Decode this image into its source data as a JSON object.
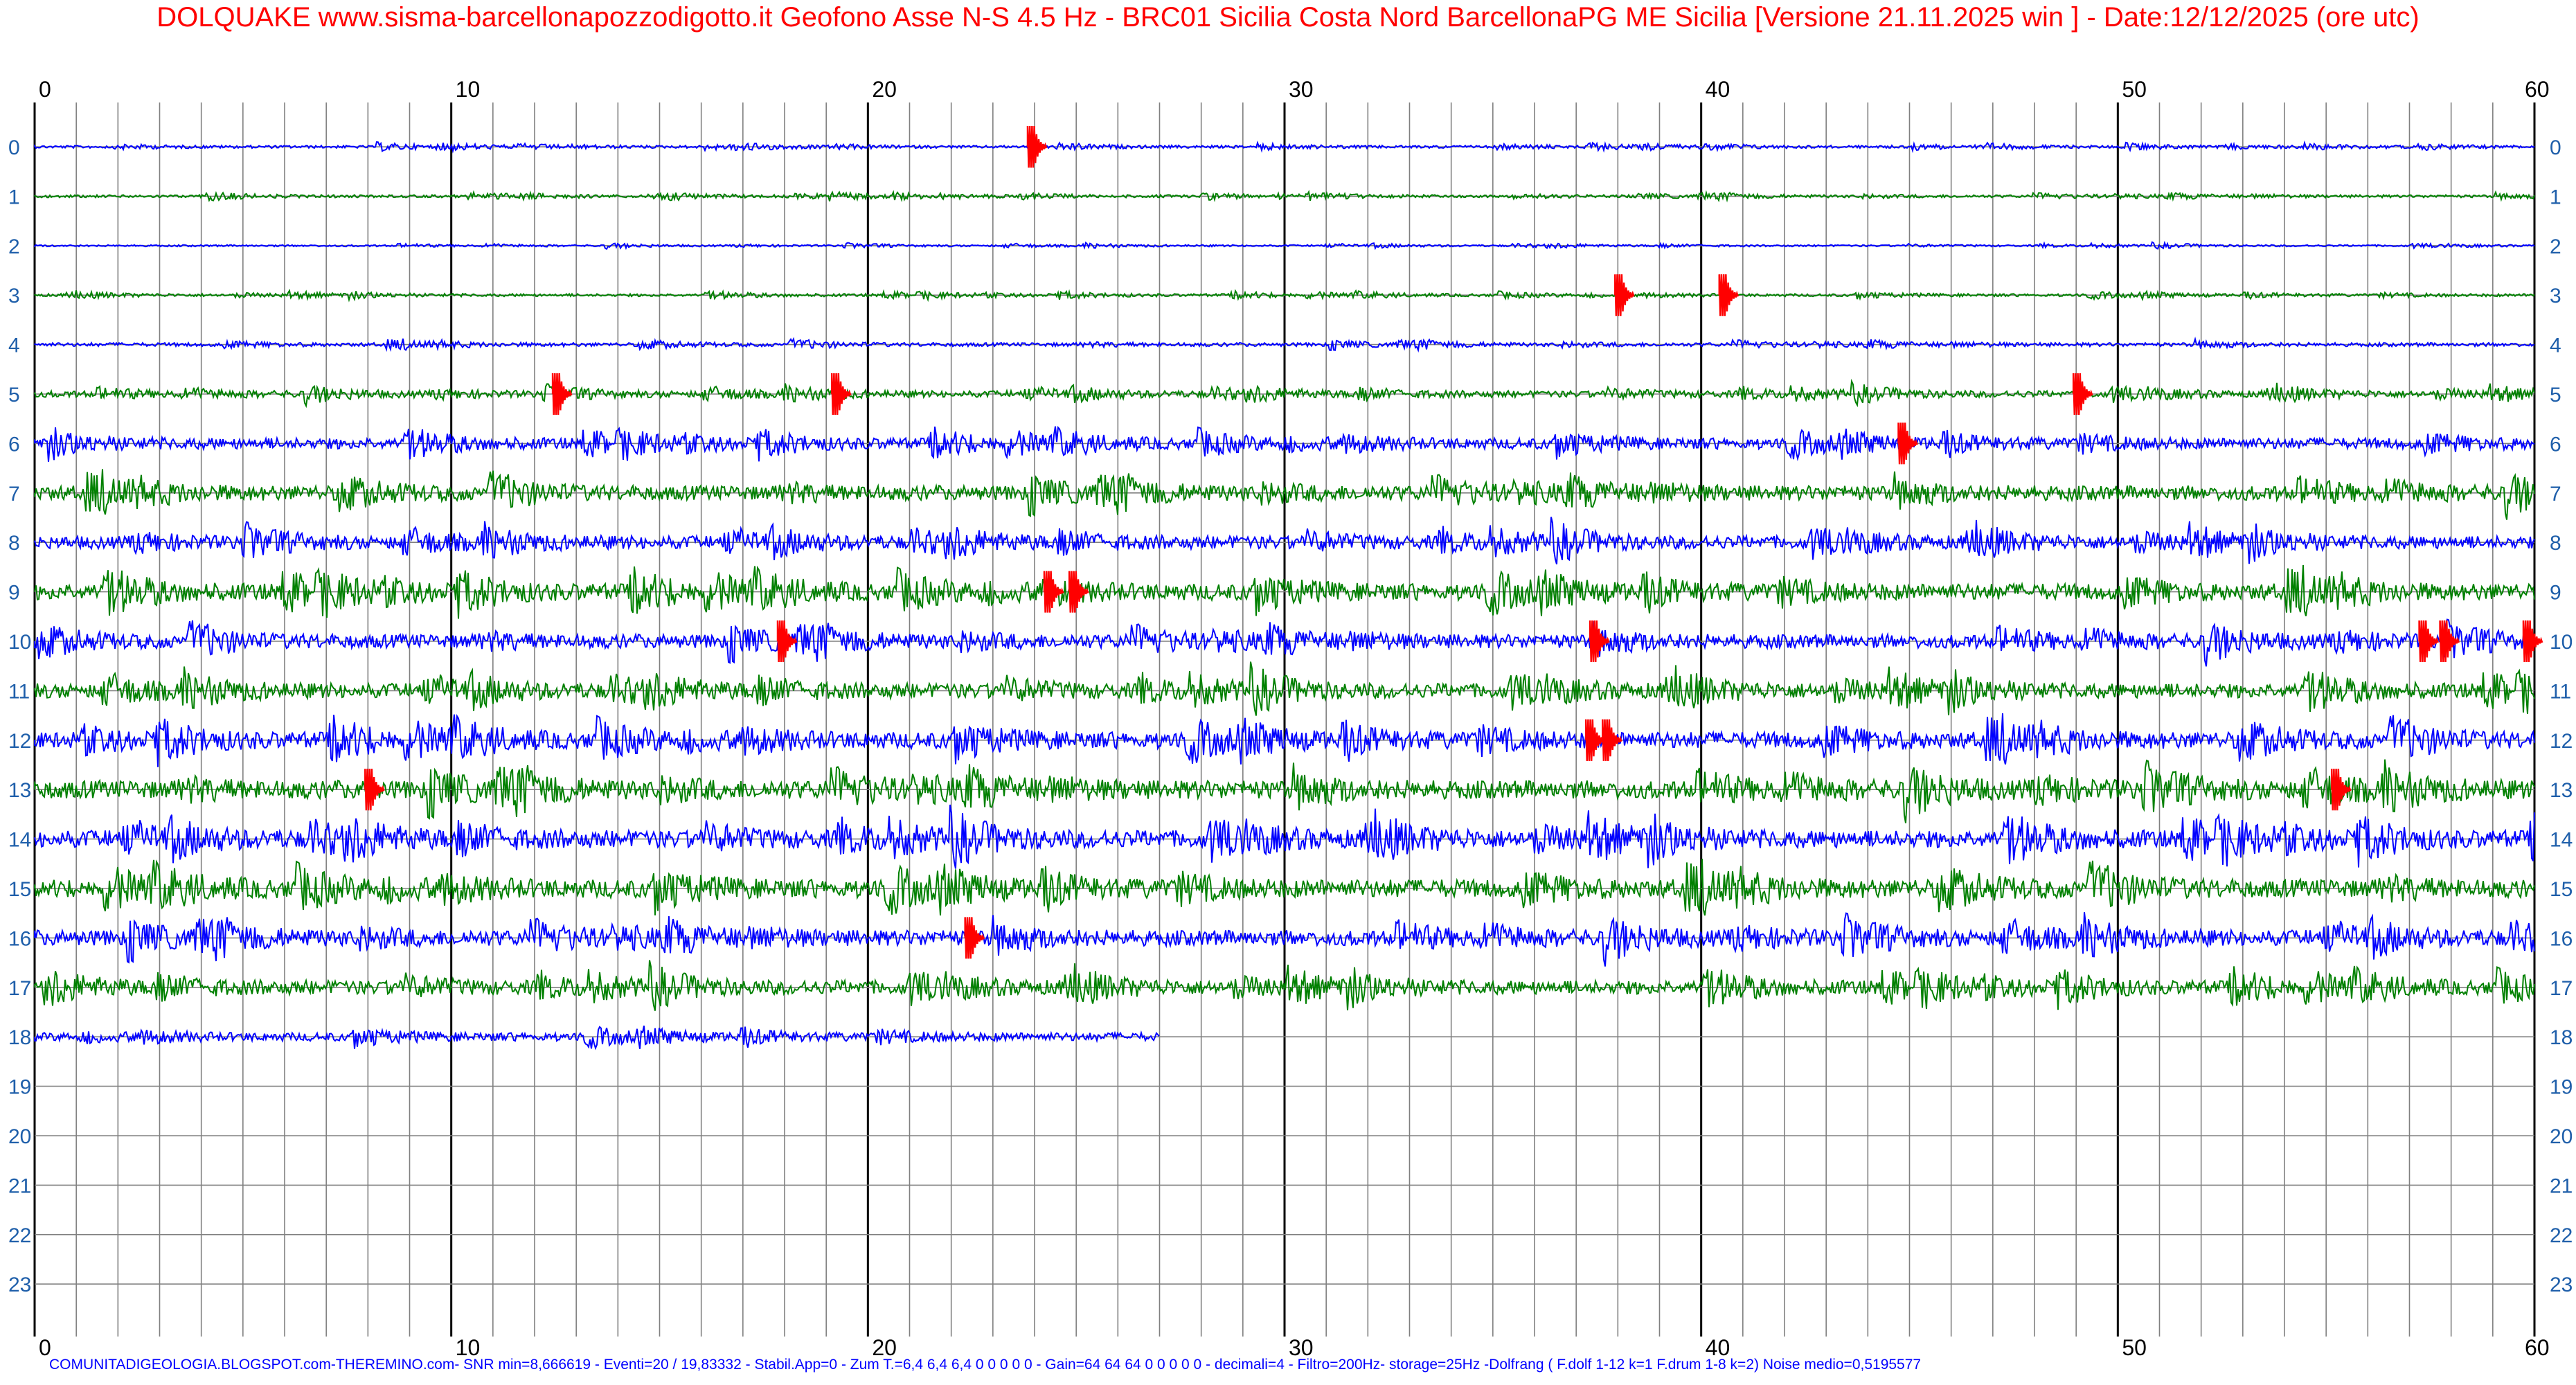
{
  "window": {
    "title": "DOLQUAKE www.sisma-barcellonapozzodigotto.it Geofono Asse N-S 4.5 Hz - BRC01 Sicilia Costa Nord BarcellonaPG ME Sicilia [Versione 21.11.2025 win ] - Date:12/12/2025 (ore utc)",
    "footer": "COMUNITADIGEOLOGIA.BLOGSPOT.com-THEREMINO.com- SNR min=8,666619 - Eventi=20 / 19,83332 - Stabil.App=0 - Zum T.=6,4 6,4 6,4 0 0 0 0 0 - Gain=64 64 64 0 0 0 0 0 - decimali=4 - Filtro=200Hz- storage=25Hz -Dolfrang ( F.dolf 1-12 k=1 F.drum 1-8 k=2) Noise medio=0,5195577"
  },
  "colors": {
    "background": "#ffffff",
    "title": "#ff0000",
    "footer": "#0000ff",
    "trace_even": "#0000ff",
    "trace_odd": "#008000",
    "event": "#ff0000",
    "grid_minor": "#808080",
    "grid_major": "#000000",
    "tick_labels": "#1f5faa"
  },
  "chart_data": {
    "type": "line",
    "description_x": "minutes within hour",
    "description_y": "hour of day (UTC)",
    "xlim": [
      0,
      60
    ],
    "x_major_ticks": [
      0,
      10,
      20,
      30,
      40,
      50,
      60
    ],
    "x_minor_step": 1,
    "hours": [
      "0",
      "1",
      "2",
      "3",
      "4",
      "5",
      "6",
      "7",
      "8",
      "9",
      "10",
      "11",
      "12",
      "13",
      "14",
      "15",
      "16",
      "17",
      "18",
      "19",
      "20",
      "21",
      "22",
      "23"
    ],
    "recorded_until": {
      "hour": 18,
      "minute": 27
    },
    "noise_amplitude_by_hour": [
      0.15,
      0.15,
      0.1,
      0.15,
      0.2,
      0.35,
      0.6,
      0.8,
      0.7,
      0.9,
      0.75,
      0.8,
      0.9,
      1.0,
      0.95,
      1.0,
      0.85,
      0.75,
      0.45
    ],
    "events": [
      {
        "hour": 0,
        "minute": 23.9
      },
      {
        "hour": 3,
        "minute": 38.0
      },
      {
        "hour": 3,
        "minute": 40.5
      },
      {
        "hour": 5,
        "minute": 12.5
      },
      {
        "hour": 5,
        "minute": 19.2
      },
      {
        "hour": 5,
        "minute": 49.0
      },
      {
        "hour": 6,
        "minute": 44.8
      },
      {
        "hour": 9,
        "minute": 24.3
      },
      {
        "hour": 9,
        "minute": 24.9
      },
      {
        "hour": 10,
        "minute": 17.9
      },
      {
        "hour": 10,
        "minute": 37.4
      },
      {
        "hour": 10,
        "minute": 57.3
      },
      {
        "hour": 10,
        "minute": 57.8
      },
      {
        "hour": 10,
        "minute": 59.8
      },
      {
        "hour": 12,
        "minute": 37.3
      },
      {
        "hour": 12,
        "minute": 37.7
      },
      {
        "hour": 13,
        "minute": 8.0
      },
      {
        "hour": 13,
        "minute": 55.2
      },
      {
        "hour": 16,
        "minute": 22.4
      }
    ]
  }
}
